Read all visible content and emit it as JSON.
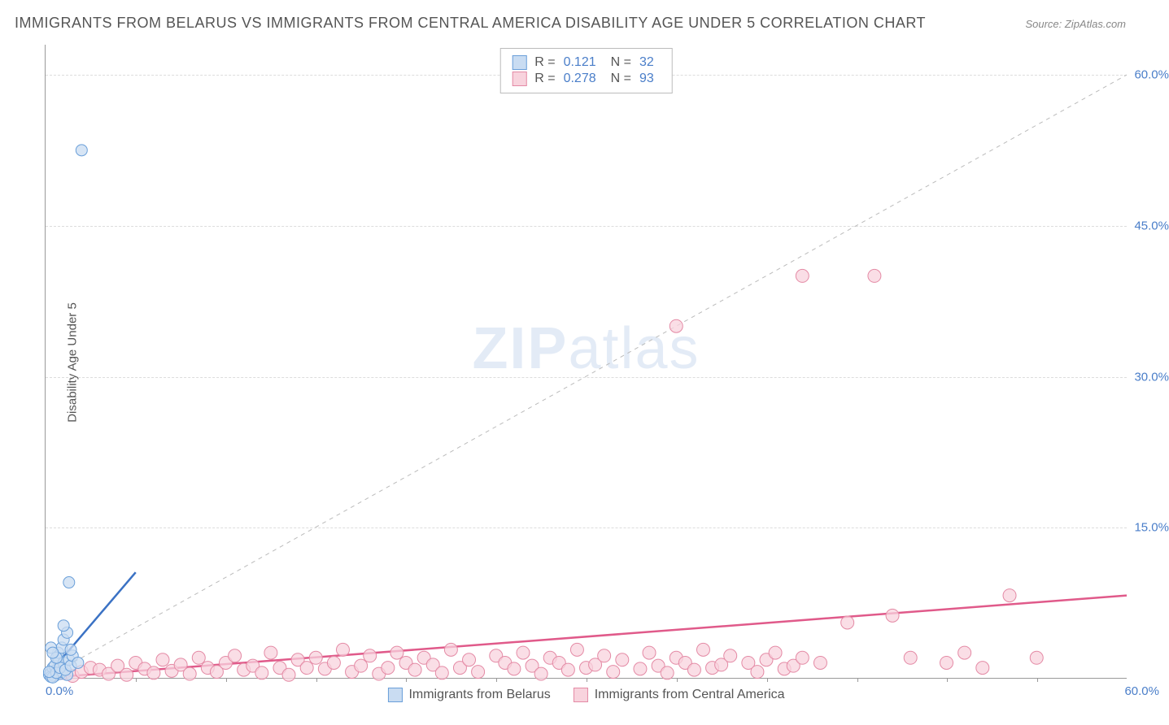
{
  "title": "IMMIGRANTS FROM BELARUS VS IMMIGRANTS FROM CENTRAL AMERICA DISABILITY AGE UNDER 5 CORRELATION CHART",
  "source": "Source: ZipAtlas.com",
  "watermark_bold": "ZIP",
  "watermark_light": "atlas",
  "chart": {
    "type": "scatter",
    "ylabel": "Disability Age Under 5",
    "xlim": [
      0,
      60
    ],
    "ylim": [
      0,
      63
    ],
    "xtick_min": "0.0%",
    "xtick_max": "60.0%",
    "yticks": [
      {
        "v": 15,
        "label": "15.0%"
      },
      {
        "v": 30,
        "label": "30.0%"
      },
      {
        "v": 45,
        "label": "45.0%"
      },
      {
        "v": 60,
        "label": "60.0%"
      }
    ],
    "x_minor_step": 5,
    "grid_color": "#dddddd",
    "background_color": "#ffffff",
    "diag_color": "#bbbbbb",
    "series": [
      {
        "name": "Immigrants from Belarus",
        "short": "belarus",
        "fill": "#c9dcf2",
        "stroke": "#6a9fd9",
        "line_color": "#3b72c4",
        "r_value": "0.121",
        "n_value": "32",
        "marker_radius": 7,
        "trend": {
          "x1": 0,
          "y1": 0,
          "x2": 5,
          "y2": 10.5
        },
        "points": [
          [
            0.2,
            0.3
          ],
          [
            0.3,
            0.5
          ],
          [
            0.5,
            0.2
          ],
          [
            0.4,
            1.0
          ],
          [
            0.6,
            0.8
          ],
          [
            0.8,
            0.4
          ],
          [
            0.3,
            0.1
          ],
          [
            0.5,
            1.2
          ],
          [
            0.7,
            2.0
          ],
          [
            0.9,
            0.6
          ],
          [
            1.0,
            1.5
          ],
          [
            1.2,
            0.3
          ],
          [
            0.4,
            0.05
          ],
          [
            0.6,
            0.5
          ],
          [
            0.7,
            2.5
          ],
          [
            0.8,
            1.0
          ],
          [
            1.1,
            0.8
          ],
          [
            1.3,
            1.8
          ],
          [
            0.2,
            0.6
          ],
          [
            0.9,
            3.0
          ],
          [
            1.4,
            1.2
          ],
          [
            1.5,
            2.2
          ],
          [
            0.3,
            3.0
          ],
          [
            0.6,
            2.0
          ],
          [
            1.0,
            3.8
          ],
          [
            1.2,
            4.5
          ],
          [
            1.4,
            2.8
          ],
          [
            0.4,
            2.5
          ],
          [
            1.0,
            5.2
          ],
          [
            1.3,
            9.5
          ],
          [
            1.8,
            1.5
          ],
          [
            2.0,
            52.5
          ]
        ]
      },
      {
        "name": "Immigrants from Central America",
        "short": "central-america",
        "fill": "#f8d3dd",
        "stroke": "#e48aa5",
        "line_color": "#e05a8a",
        "r_value": "0.278",
        "n_value": "93",
        "marker_radius": 8,
        "trend": {
          "x1": 0,
          "y1": 0,
          "x2": 60,
          "y2": 8.2
        },
        "points": [
          [
            0.5,
            0.3
          ],
          [
            1.0,
            0.5
          ],
          [
            1.5,
            0.2
          ],
          [
            2.0,
            0.6
          ],
          [
            2.5,
            1.0
          ],
          [
            3.0,
            0.8
          ],
          [
            3.5,
            0.4
          ],
          [
            4.0,
            1.2
          ],
          [
            4.5,
            0.3
          ],
          [
            5.0,
            1.5
          ],
          [
            5.5,
            0.9
          ],
          [
            6.0,
            0.5
          ],
          [
            6.5,
            1.8
          ],
          [
            7.0,
            0.7
          ],
          [
            7.5,
            1.3
          ],
          [
            8.0,
            0.4
          ],
          [
            8.5,
            2.0
          ],
          [
            9.0,
            1.0
          ],
          [
            9.5,
            0.6
          ],
          [
            10.0,
            1.5
          ],
          [
            10.5,
            2.2
          ],
          [
            11.0,
            0.8
          ],
          [
            11.5,
            1.2
          ],
          [
            12.0,
            0.5
          ],
          [
            12.5,
            2.5
          ],
          [
            13.0,
            1.0
          ],
          [
            13.5,
            0.3
          ],
          [
            14.0,
            1.8
          ],
          [
            15.0,
            2.0
          ],
          [
            15.5,
            0.9
          ],
          [
            16.0,
            1.5
          ],
          [
            16.5,
            2.8
          ],
          [
            17.0,
            0.6
          ],
          [
            17.5,
            1.2
          ],
          [
            18.0,
            2.2
          ],
          [
            18.5,
            0.4
          ],
          [
            19.0,
            1.0
          ],
          [
            19.5,
            2.5
          ],
          [
            20.0,
            1.5
          ],
          [
            20.5,
            0.8
          ],
          [
            21.0,
            2.0
          ],
          [
            21.5,
            1.3
          ],
          [
            22.0,
            0.5
          ],
          [
            22.5,
            2.8
          ],
          [
            23.0,
            1.0
          ],
          [
            23.5,
            1.8
          ],
          [
            24.0,
            0.6
          ],
          [
            25.0,
            2.2
          ],
          [
            25.5,
            1.5
          ],
          [
            26.0,
            0.9
          ],
          [
            26.5,
            2.5
          ],
          [
            27.0,
            1.2
          ],
          [
            27.5,
            0.4
          ],
          [
            28.0,
            2.0
          ],
          [
            28.5,
            1.5
          ],
          [
            29.0,
            0.8
          ],
          [
            29.5,
            2.8
          ],
          [
            30.0,
            1.0
          ],
          [
            30.5,
            1.3
          ],
          [
            31.0,
            2.2
          ],
          [
            31.5,
            0.6
          ],
          [
            32.0,
            1.8
          ],
          [
            33.0,
            0.9
          ],
          [
            33.5,
            2.5
          ],
          [
            34.0,
            1.2
          ],
          [
            34.5,
            0.5
          ],
          [
            35.0,
            2.0
          ],
          [
            35.5,
            1.5
          ],
          [
            36.0,
            0.8
          ],
          [
            36.5,
            2.8
          ],
          [
            37.0,
            1.0
          ],
          [
            37.5,
            1.3
          ],
          [
            38.0,
            2.2
          ],
          [
            39.0,
            1.5
          ],
          [
            39.5,
            0.6
          ],
          [
            40.0,
            1.8
          ],
          [
            40.5,
            2.5
          ],
          [
            41.0,
            0.9
          ],
          [
            41.5,
            1.2
          ],
          [
            42.0,
            2.0
          ],
          [
            43.0,
            1.5
          ],
          [
            44.5,
            5.5
          ],
          [
            47.0,
            6.2
          ],
          [
            48.0,
            2.0
          ],
          [
            50.0,
            1.5
          ],
          [
            51.0,
            2.5
          ],
          [
            52.0,
            1.0
          ],
          [
            53.5,
            8.2
          ],
          [
            55.0,
            2.0
          ],
          [
            35.0,
            35.0
          ],
          [
            42.0,
            40.0
          ],
          [
            46.0,
            40.0
          ],
          [
            14.5,
            1.0
          ]
        ]
      }
    ]
  }
}
